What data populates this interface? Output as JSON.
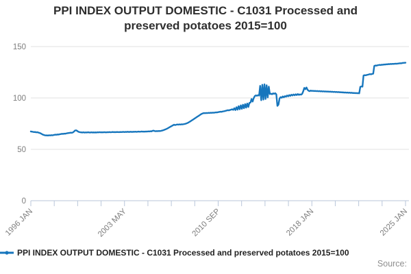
{
  "title": "PPI INDEX OUTPUT DOMESTIC - C1031 Processed and preserved potatoes 2015=100",
  "legend": {
    "label": "PPI INDEX OUTPUT DOMESTIC - C1031 Processed and preserved potatoes 2015=100"
  },
  "source_label": "Source:",
  "colors": {
    "line": "#1776bd",
    "grid": "#e2e2e2",
    "axis": "#b9c6da",
    "tick_label": "#7d7d7d",
    "title": "#2e2e2e"
  },
  "chart_data": {
    "type": "line",
    "title": "PPI INDEX OUTPUT DOMESTIC - C1031 Processed and preserved potatoes 2015=100",
    "xlabel": "",
    "ylabel": "",
    "x_axis": {
      "start": "1996 JAN",
      "end": "2025 JAN",
      "frequency": "monthly",
      "tick_labels": [
        "1996 JAN",
        "2003 MAY",
        "2010 SEP",
        "2018 JAN",
        "2025 JAN"
      ],
      "minor_ticks": 17,
      "label_every_nth_tick": 4
    },
    "y_axis": {
      "ticks": [
        0,
        50,
        100,
        150
      ],
      "range": [
        0,
        150
      ],
      "grid": true
    },
    "legend_position": "bottom-left",
    "series": [
      {
        "name": "PPI INDEX OUTPUT DOMESTIC - C1031 Processed and preserved potatoes 2015=100",
        "values": [
          67.4,
          67.2,
          67.0,
          66.8,
          66.9,
          66.5,
          66.7,
          66.3,
          66.0,
          65.6,
          65.0,
          64.4,
          64.0,
          63.7,
          63.5,
          63.6,
          63.4,
          63.7,
          63.5,
          63.8,
          63.6,
          63.9,
          64.1,
          64.3,
          64.2,
          64.5,
          64.4,
          64.7,
          64.9,
          65.1,
          65.0,
          65.3,
          65.2,
          65.5,
          65.7,
          65.9,
          66.0,
          66.2,
          66.1,
          66.4,
          67.2,
          68.3,
          68.5,
          68.0,
          67.2,
          66.8,
          66.6,
          66.5,
          66.4,
          66.6,
          66.3,
          66.5,
          66.4,
          66.6,
          66.5,
          66.3,
          66.6,
          66.4,
          66.5,
          66.4,
          66.5,
          66.4,
          66.6,
          66.5,
          66.7,
          66.5,
          66.6,
          66.5,
          66.7,
          66.6,
          66.5,
          66.7,
          66.6,
          66.8,
          66.6,
          66.7,
          66.9,
          66.7,
          66.8,
          66.7,
          66.9,
          66.8,
          66.7,
          66.9,
          66.8,
          66.9,
          67.0,
          66.8,
          67.0,
          66.9,
          67.1,
          66.9,
          67.0,
          67.1,
          66.9,
          67.1,
          67.0,
          67.2,
          67.0,
          67.1,
          67.3,
          67.1,
          67.2,
          67.4,
          67.2,
          67.3,
          67.2,
          67.4,
          67.3,
          67.5,
          67.4,
          67.6,
          67.5,
          68.0,
          68.2,
          67.8,
          67.6,
          67.8,
          67.7,
          67.9,
          67.8,
          68.0,
          68.3,
          68.6,
          69.0,
          69.4,
          69.9,
          70.4,
          71.0,
          71.6,
          72.2,
          72.8,
          73.4,
          74.0,
          73.6,
          73.9,
          74.2,
          74.0,
          74.3,
          74.1,
          74.4,
          74.3,
          74.5,
          74.7,
          75.0,
          75.4,
          75.9,
          76.5,
          77.1,
          77.8,
          78.5,
          79.2,
          79.9,
          80.6,
          81.3,
          82.0,
          82.7,
          83.4,
          84.1,
          84.7,
          85.1,
          85.3,
          85.2,
          85.4,
          85.3,
          85.5,
          85.4,
          85.6,
          85.5,
          85.7,
          85.6,
          85.8,
          86.0,
          85.9,
          86.2,
          86.4,
          86.6,
          86.5,
          86.8,
          87.0,
          87.2,
          87.5,
          87.8,
          88.1,
          87.9,
          88.3,
          88.6,
          89.0,
          88.4,
          90.0,
          88.2,
          91.0,
          88.6,
          92.0,
          89.0,
          92.8,
          89.4,
          93.4,
          90.0,
          94.0,
          90.6,
          94.6,
          91.2,
          95.2,
          95.5,
          99.0,
          96.5,
          99.8,
          101.8,
          102.5,
          102.1,
          102.7,
          102.3,
          111.8,
          97.8,
          112.9,
          98.4,
          113.3,
          99.0,
          112.4,
          100.5,
          111.0,
          103.8,
          104.2,
          103.6,
          104.5,
          104.0,
          104.6,
          103.5,
          92.3,
          93.5,
          99.5,
          100.8,
          100.2,
          101.5,
          100.6,
          101.8,
          101.2,
          102.4,
          101.6,
          102.8,
          102.0,
          103.2,
          102.4,
          103.4,
          102.6,
          103.6,
          102.8,
          103.8,
          103.0,
          103.5,
          103.2,
          104.0,
          106.5,
          109.8,
          108.5,
          110.2,
          108.0,
          107.0,
          106.6,
          107.2,
          106.8,
          107.0,
          106.7,
          106.9,
          106.6,
          106.8,
          106.5,
          106.7,
          106.4,
          106.6,
          106.3,
          106.5,
          106.2,
          106.4,
          106.1,
          106.3,
          106.0,
          106.2,
          105.9,
          106.1,
          105.8,
          106.0,
          105.7,
          105.9,
          105.6,
          105.8,
          105.5,
          105.6,
          105.4,
          105.5,
          105.2,
          105.4,
          105.1,
          105.3,
          105.0,
          105.2,
          104.9,
          105.1,
          104.8,
          104.9,
          104.7,
          104.8,
          104.6,
          104.7,
          104.5,
          110.8,
          111.2,
          111.0,
          121.8,
          122.2,
          122.0,
          122.4,
          122.6,
          122.9,
          123.2,
          123.0,
          123.4,
          123.6,
          131.2,
          131.6,
          131.4,
          131.8,
          132.0,
          132.2,
          132.0,
          132.4,
          132.3,
          132.6,
          132.5,
          132.8,
          132.7,
          133.0,
          132.9,
          133.1,
          133.0,
          133.2,
          133.1,
          133.3,
          133.4,
          133.3,
          133.5,
          133.6,
          133.8,
          133.7,
          134.0,
          134.1,
          134.2,
          134.3
        ]
      }
    ]
  }
}
